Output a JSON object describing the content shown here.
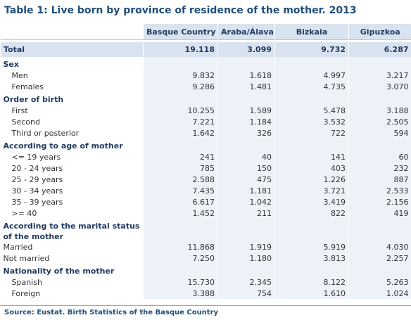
{
  "title": "Table 1: Live born by province of residence of the mother. 2013",
  "columns": [
    "Basque Country",
    "Araba/Álava",
    "Bizkaia",
    "Gipuzkoa"
  ],
  "total": {
    "label": "Total",
    "values": [
      "19.118",
      "3.099",
      "9.732",
      "6.287"
    ]
  },
  "sections": [
    {
      "heading": "Sex",
      "rows": [
        {
          "label": "Men",
          "values": [
            "9.832",
            "1.618",
            "4.997",
            "3.217"
          ]
        },
        {
          "label": "Females",
          "values": [
            "9.286",
            "1.481",
            "4.735",
            "3.070"
          ]
        }
      ]
    },
    {
      "heading": "Order of birth",
      "rows": [
        {
          "label": "First",
          "values": [
            "10.255",
            "1.589",
            "5.478",
            "3.188"
          ]
        },
        {
          "label": "Second",
          "values": [
            "7.221",
            "1.184",
            "3.532",
            "2.505"
          ]
        },
        {
          "label": "Third or posterior",
          "values": [
            "1.642",
            "326",
            "722",
            "594"
          ]
        }
      ]
    },
    {
      "heading": "According to age of mother",
      "rows": [
        {
          "label": "<= 19 years",
          "values": [
            "241",
            "40",
            "141",
            "60"
          ]
        },
        {
          "label": "20 - 24 years",
          "values": [
            "785",
            "150",
            "403",
            "232"
          ]
        },
        {
          "label": "25 - 29 years",
          "values": [
            "2.588",
            "475",
            "1.226",
            "887"
          ]
        },
        {
          "label": "30 - 34 years",
          "values": [
            "7.435",
            "1.181",
            "3.721",
            "2.533"
          ]
        },
        {
          "label": "35 - 39 years",
          "values": [
            "6.617",
            "1.042",
            "3.419",
            "2.156"
          ]
        },
        {
          "label": ">= 40",
          "values": [
            "1.452",
            "211",
            "822",
            "419"
          ]
        }
      ]
    },
    {
      "heading": "According to the marital status",
      "heading2": "of the mother",
      "rows": [
        {
          "label": "Married",
          "values": [
            "11.868",
            "1.919",
            "5.919",
            "4.030"
          ]
        },
        {
          "label": "Not married",
          "values": [
            "7.250",
            "1.180",
            "3.813",
            "2.257"
          ]
        }
      ]
    },
    {
      "heading": "Nationality of the mother",
      "rows": [
        {
          "label": "Spanish",
          "values": [
            "15.730",
            "2.345",
            "8.122",
            "5.263"
          ]
        },
        {
          "label": "Foreign",
          "values": [
            "3.388",
            "754",
            "1.610",
            "1.024"
          ]
        }
      ]
    }
  ],
  "source": "Source: Eustat. Birth Statistics of the Basque Country"
}
